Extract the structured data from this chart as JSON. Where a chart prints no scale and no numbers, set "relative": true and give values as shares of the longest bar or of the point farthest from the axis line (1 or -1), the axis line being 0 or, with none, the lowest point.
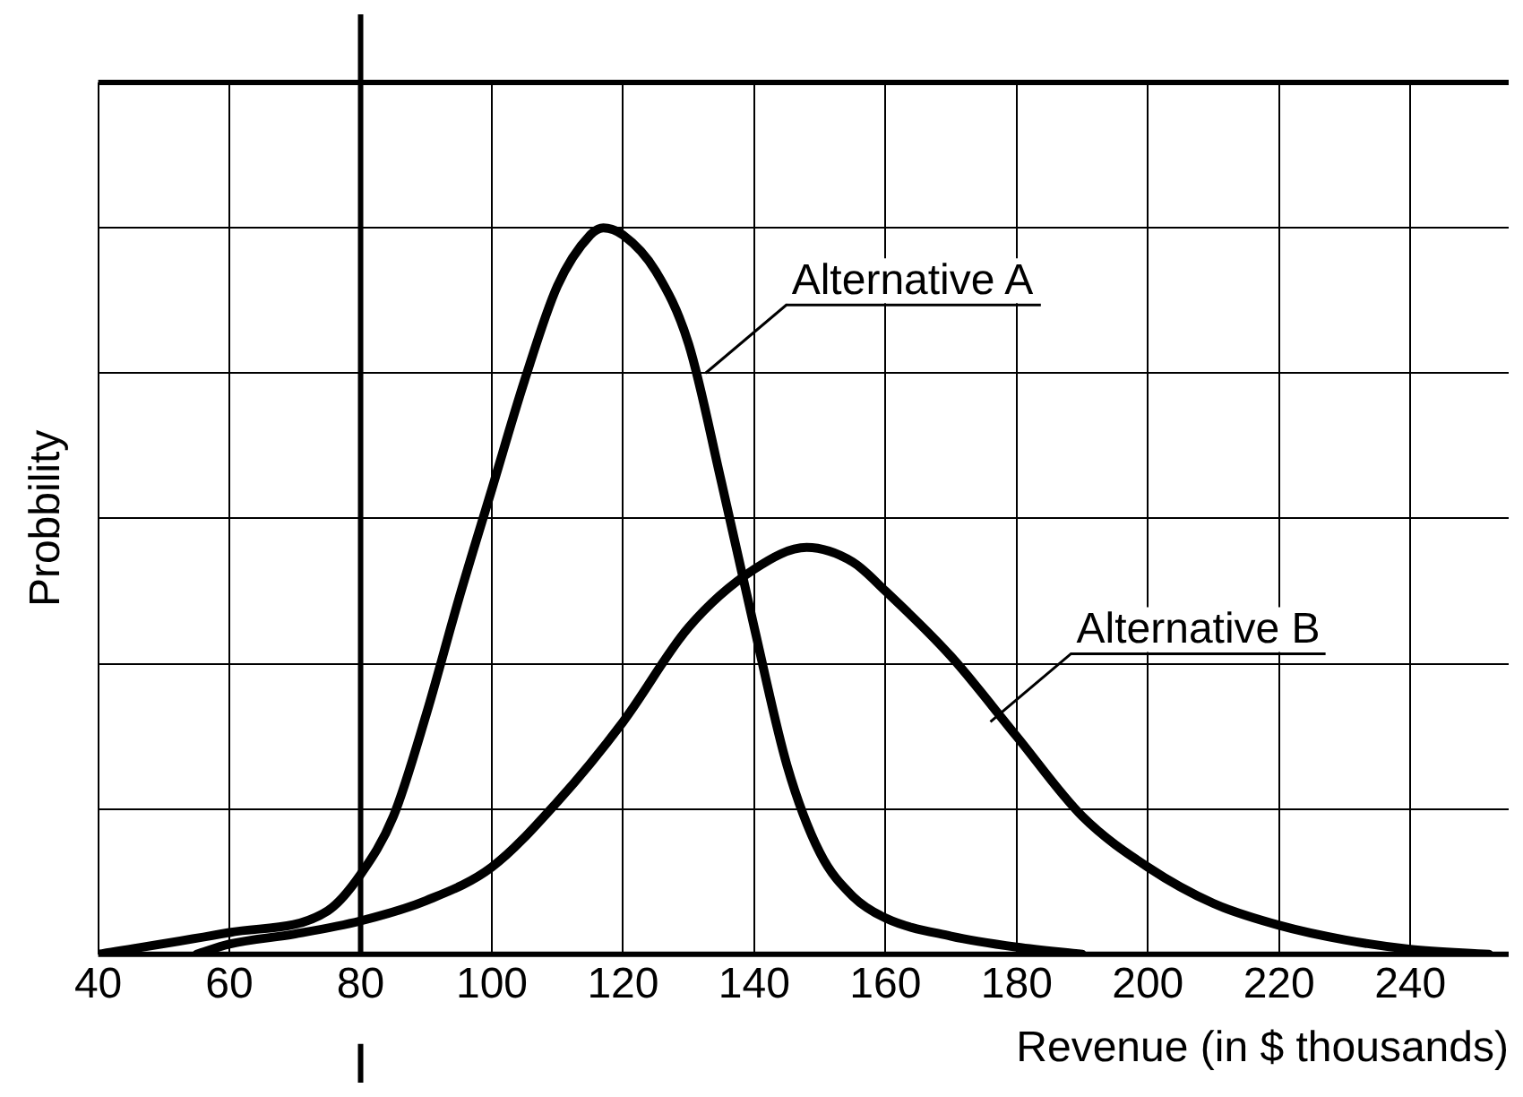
{
  "chart_data": {
    "type": "line",
    "xlabel": "Revenue (in $ thousands)",
    "ylabel": "Probbility",
    "relative": true,
    "xlim": [
      40,
      255
    ],
    "xticks": [
      40,
      60,
      80,
      100,
      120,
      140,
      160,
      180,
      200,
      220,
      240
    ],
    "grid": true,
    "legend": false,
    "marker": "none",
    "line_style": "solid",
    "tick_labels": "x",
    "series": [
      {
        "color": "#000000",
        "x": [
          40,
          60,
          75,
          80,
          85,
          90,
          95,
          100,
          105,
          110,
          115,
          117,
          120,
          125,
          130,
          135,
          140,
          145,
          150,
          155,
          160,
          170,
          180,
          190
        ],
        "values": [
          0,
          0.03,
          0.06,
          0.11,
          0.19,
          0.33,
          0.49,
          0.64,
          0.79,
          0.92,
          0.99,
          1,
          0.99,
          0.94,
          0.84,
          0.65,
          0.45,
          0.26,
          0.14,
          0.08,
          0.05,
          0.025,
          0.01,
          0
        ]
      },
      {
        "color": "#000000",
        "x": [
          55,
          60,
          70,
          80,
          90,
          100,
          110,
          120,
          130,
          140,
          148,
          155,
          160,
          170,
          180,
          190,
          200,
          210,
          220,
          230,
          240,
          252
        ],
        "values": [
          0,
          0.014,
          0.028,
          0.046,
          0.074,
          0.12,
          0.21,
          0.32,
          0.45,
          0.53,
          0.56,
          0.54,
          0.5,
          0.41,
          0.3,
          0.19,
          0.12,
          0.07,
          0.04,
          0.02,
          0.007,
          0
        ]
      }
    ],
    "ref_lines": [
      {
        "axis": "x",
        "value": 80,
        "color": "#000000"
      }
    ],
    "annotations": [
      {
        "text": "Alternative A",
        "x": 132.6,
        "y": 0.8
      },
      {
        "text": "Alternative B",
        "x": 176,
        "y": 0.32
      }
    ]
  }
}
